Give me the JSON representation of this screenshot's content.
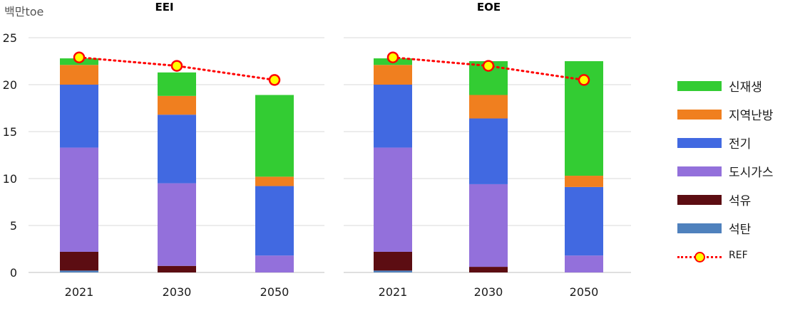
{
  "y_unit": "백만toe",
  "chart_data": [
    {
      "type": "bar",
      "stacked": true,
      "title": "EEI",
      "categories": [
        "2021",
        "2030",
        "2050"
      ],
      "ylim": [
        0,
        25
      ],
      "yticks": [
        0,
        5,
        10,
        15,
        20,
        25
      ],
      "grid": true,
      "series": [
        {
          "name": "석탄",
          "values": [
            0.2,
            0.0,
            0.0
          ]
        },
        {
          "name": "석유",
          "values": [
            2.0,
            0.7,
            0.0
          ]
        },
        {
          "name": "도시가스",
          "values": [
            11.1,
            8.8,
            1.8
          ]
        },
        {
          "name": "전기",
          "values": [
            6.7,
            7.3,
            7.4
          ]
        },
        {
          "name": "지역난방",
          "values": [
            2.1,
            2.0,
            1.0
          ]
        },
        {
          "name": "신재생",
          "values": [
            0.7,
            2.5,
            8.7
          ]
        }
      ],
      "ref": {
        "name": "REF",
        "values": [
          22.9,
          22.0,
          20.5
        ]
      }
    },
    {
      "type": "bar",
      "stacked": true,
      "title": "EOE",
      "categories": [
        "2021",
        "2030",
        "2050"
      ],
      "ylim": [
        0,
        25
      ],
      "yticks": [
        0,
        5,
        10,
        15,
        20,
        25
      ],
      "grid": true,
      "series": [
        {
          "name": "석탄",
          "values": [
            0.2,
            0.0,
            0.0
          ]
        },
        {
          "name": "석유",
          "values": [
            2.0,
            0.6,
            0.0
          ]
        },
        {
          "name": "도시가스",
          "values": [
            11.1,
            8.8,
            1.8
          ]
        },
        {
          "name": "전기",
          "values": [
            6.7,
            7.0,
            7.3
          ]
        },
        {
          "name": "지역난방",
          "values": [
            2.1,
            2.5,
            1.2
          ]
        },
        {
          "name": "신재생",
          "values": [
            0.7,
            3.6,
            12.2
          ]
        }
      ],
      "ref": {
        "name": "REF",
        "values": [
          22.9,
          22.0,
          20.5
        ]
      }
    }
  ],
  "colors": {
    "석탄": "#4f81bd",
    "석유": "#5c0d12",
    "도시가스": "#9370db",
    "전기": "#4169e1",
    "지역난방": "#f07f1f",
    "신재생": "#33cc33",
    "ref_line": "#ff0000",
    "ref_marker": "#ffff00",
    "grid": "#d9d9d9",
    "axis_text": "#1a1a1a"
  },
  "legend": {
    "placement": "right",
    "items": [
      {
        "label": "신재생",
        "key": "신재생"
      },
      {
        "label": "지역난방",
        "key": "지역난방"
      },
      {
        "label": "전기",
        "key": "전기"
      },
      {
        "label": "도시가스",
        "key": "도시가스"
      },
      {
        "label": "석유",
        "key": "석유"
      },
      {
        "label": "석탄",
        "key": "석탄"
      }
    ],
    "ref_label": "REF"
  }
}
